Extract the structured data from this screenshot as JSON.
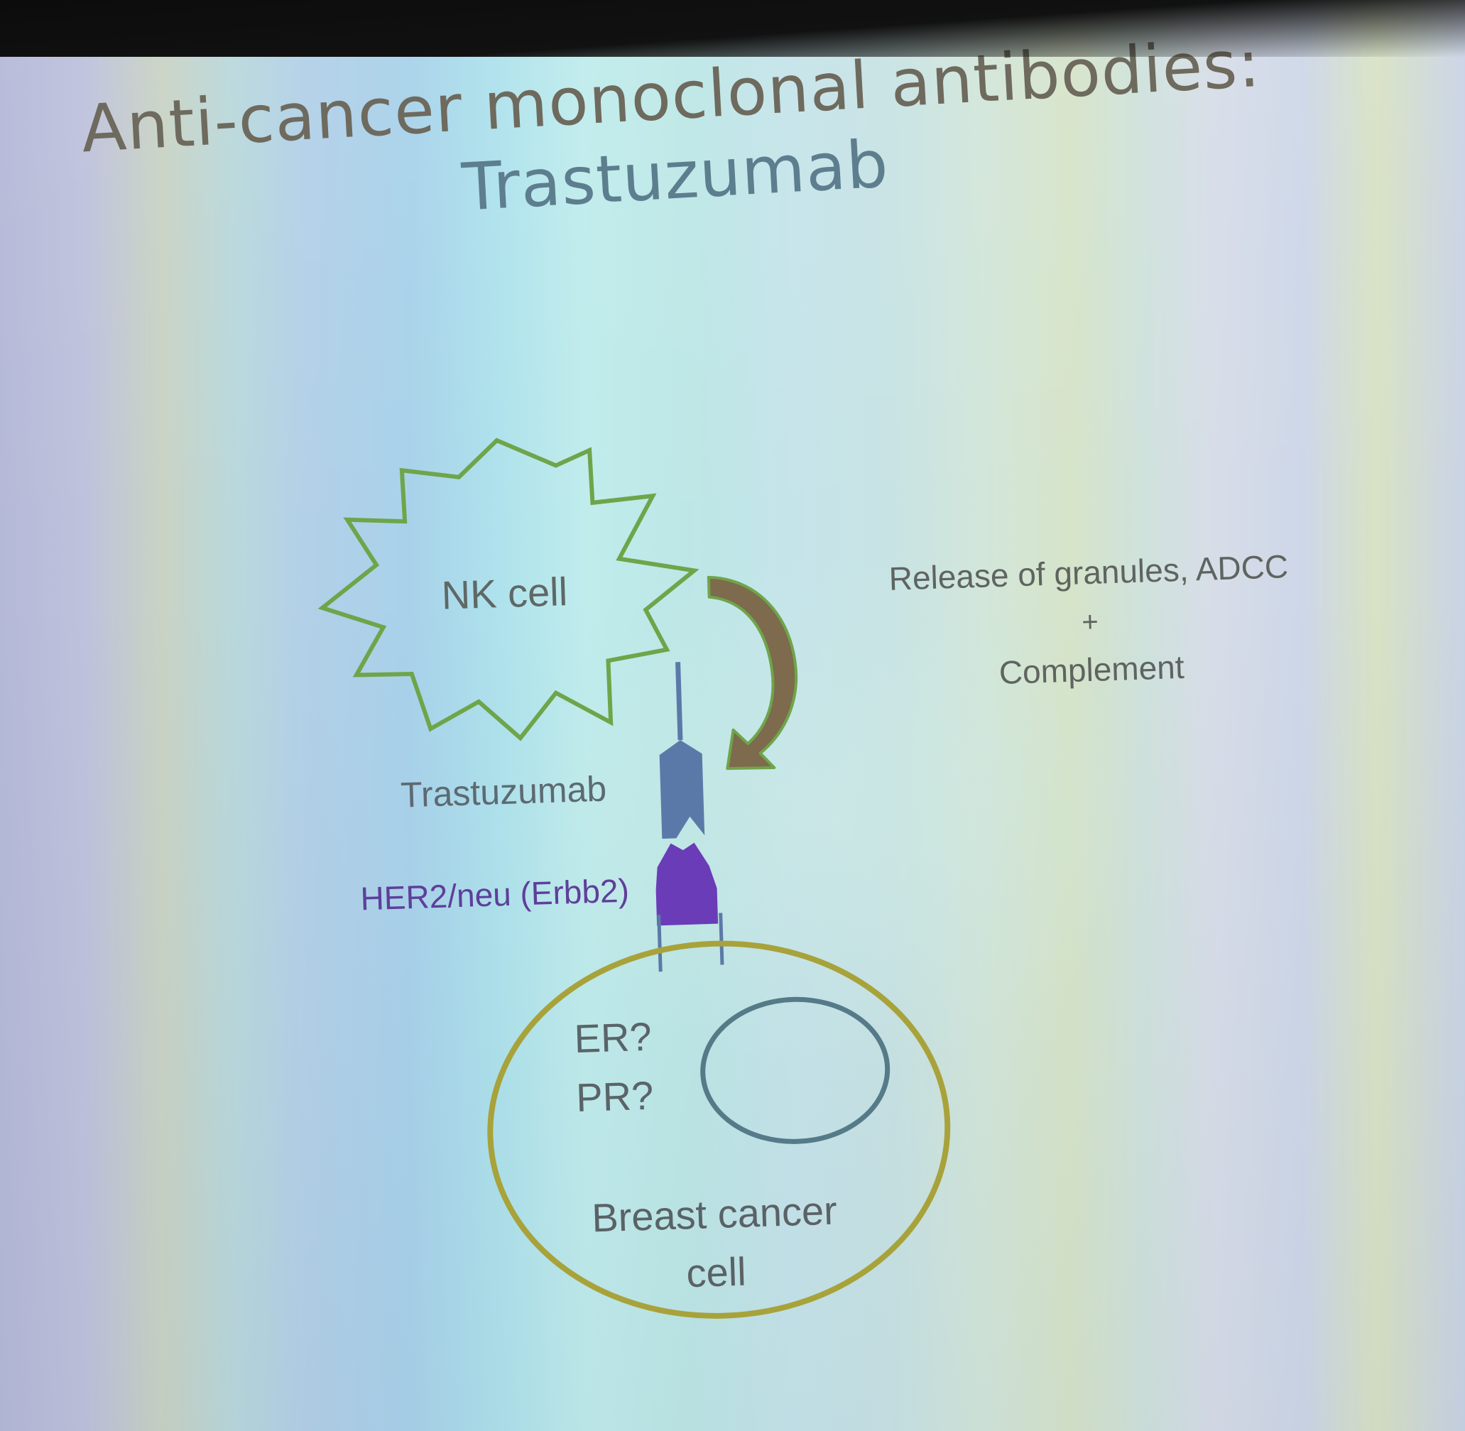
{
  "slide": {
    "title_line1": "Anti-cancer monoclonal antibodies:",
    "title_line2": "Trastuzumab"
  },
  "diagram": {
    "nk_cell_label": "NK cell",
    "antibody_label": "Trastuzumab",
    "receptor_label": "HER2/neu (Erbb2)",
    "effect_line1": "Release of granules, ADCC",
    "effect_plus": "+",
    "effect_line2": "Complement",
    "cell_marker_1": "ER?",
    "cell_marker_2": "PR?",
    "cancer_cell_line1": "Breast cancer",
    "cancer_cell_line2": "cell"
  },
  "colors": {
    "nk_outline": "#6ea54a",
    "arrow_fill": "#7e6a4c",
    "arrow_edge": "#6ea54a",
    "antibody": "#5b79a8",
    "receptor": "#6a3cb8",
    "cancer_cell_outline": "#a8a23a",
    "nucleus_outline": "#557a88"
  }
}
